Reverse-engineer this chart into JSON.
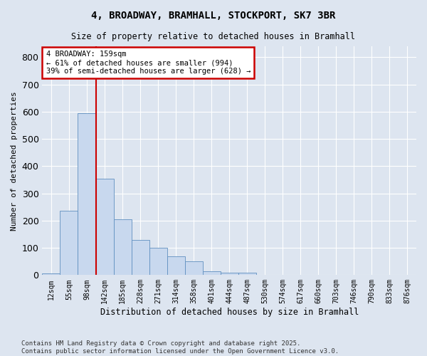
{
  "title": "4, BROADWAY, BRAMHALL, STOCKPORT, SK7 3BR",
  "subtitle": "Size of property relative to detached houses in Bramhall",
  "xlabel": "Distribution of detached houses by size in Bramhall",
  "ylabel": "Number of detached properties",
  "categories": [
    "12sqm",
    "55sqm",
    "98sqm",
    "142sqm",
    "185sqm",
    "228sqm",
    "271sqm",
    "314sqm",
    "358sqm",
    "401sqm",
    "444sqm",
    "487sqm",
    "530sqm",
    "574sqm",
    "617sqm",
    "660sqm",
    "703sqm",
    "746sqm",
    "790sqm",
    "833sqm",
    "876sqm"
  ],
  "values": [
    5,
    235,
    595,
    355,
    205,
    130,
    100,
    70,
    50,
    15,
    10,
    10,
    0,
    0,
    0,
    0,
    0,
    0,
    0,
    0,
    0
  ],
  "bar_color": "#c8d8ee",
  "bar_edge_color": "#6090c0",
  "bar_width": 1.0,
  "vline_x": 3.0,
  "vline_color": "#cc0000",
  "annotation_text": "4 BROADWAY: 159sqm\n← 61% of detached houses are smaller (994)\n39% of semi-detached houses are larger (628) →",
  "annotation_box_color": "#ffffff",
  "annotation_box_edge": "#cc0000",
  "ylim": [
    0,
    840
  ],
  "yticks": [
    0,
    100,
    200,
    300,
    400,
    500,
    600,
    700,
    800
  ],
  "background_color": "#dde5f0",
  "grid_color": "#ffffff",
  "footer_line1": "Contains HM Land Registry data © Crown copyright and database right 2025.",
  "footer_line2": "Contains public sector information licensed under the Open Government Licence v3.0."
}
